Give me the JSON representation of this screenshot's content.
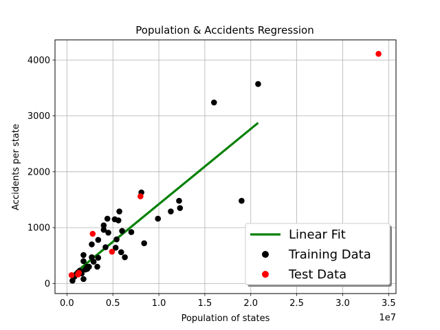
{
  "chart_data": {
    "type": "scatter",
    "title": "Population & Accidents Regression",
    "xlabel": "Population of states",
    "ylabel": "Accidents per state",
    "x_offset_label": "1e7",
    "xlim": [
      -1.3,
      35.8
    ],
    "ylim": [
      -180,
      4360
    ],
    "x_ticks": [
      0.0,
      0.5,
      1.0,
      1.5,
      2.0,
      2.5,
      3.0,
      3.5
    ],
    "x_tick_labels": [
      "0.0",
      "0.5",
      "1.0",
      "1.5",
      "2.0",
      "2.5",
      "3.0",
      "3.5"
    ],
    "y_ticks": [
      0,
      1000,
      2000,
      3000,
      4000
    ],
    "y_tick_labels": [
      "0",
      "1000",
      "2000",
      "3000",
      "4000"
    ],
    "grid": true,
    "legend_position": "lower-right",
    "series": [
      {
        "name": "Linear Fit",
        "kind": "line",
        "color": "#008000",
        "points": [
          [
            0.05,
            140
          ],
          [
            2.08,
            2875
          ]
        ]
      },
      {
        "name": "Training Data",
        "kind": "scatter",
        "color": "#000000",
        "points": [
          [
            0.06,
            50
          ],
          [
            0.08,
            120
          ],
          [
            0.1,
            160
          ],
          [
            0.12,
            200
          ],
          [
            0.14,
            230
          ],
          [
            0.16,
            180
          ],
          [
            0.18,
            80
          ],
          [
            0.2,
            250
          ],
          [
            0.22,
            260
          ],
          [
            0.24,
            300
          ],
          [
            0.18,
            400
          ],
          [
            0.18,
            510
          ],
          [
            0.22,
            300
          ],
          [
            0.27,
            470
          ],
          [
            0.27,
            700
          ],
          [
            0.29,
            390
          ],
          [
            0.33,
            300
          ],
          [
            0.34,
            460
          ],
          [
            0.34,
            780
          ],
          [
            0.4,
            960
          ],
          [
            0.4,
            1040
          ],
          [
            0.42,
            650
          ],
          [
            0.44,
            1160
          ],
          [
            0.45,
            910
          ],
          [
            0.52,
            1150
          ],
          [
            0.53,
            640
          ],
          [
            0.54,
            790
          ],
          [
            0.56,
            1130
          ],
          [
            0.57,
            1290
          ],
          [
            0.59,
            560
          ],
          [
            0.6,
            940
          ],
          [
            0.63,
            470
          ],
          [
            0.7,
            920
          ],
          [
            0.81,
            1630
          ],
          [
            0.84,
            720
          ],
          [
            0.99,
            1160
          ],
          [
            1.13,
            1290
          ],
          [
            1.22,
            1480
          ],
          [
            1.23,
            1350
          ],
          [
            1.6,
            3240
          ],
          [
            1.9,
            1480
          ],
          [
            2.08,
            3570
          ]
        ]
      },
      {
        "name": "Test Data",
        "kind": "scatter",
        "color": "#ff0000",
        "points": [
          [
            0.05,
            150
          ],
          [
            0.12,
            160
          ],
          [
            0.13,
            190
          ],
          [
            0.28,
            890
          ],
          [
            0.49,
            570
          ],
          [
            0.8,
            1560
          ],
          [
            3.39,
            4110
          ]
        ]
      }
    ]
  }
}
